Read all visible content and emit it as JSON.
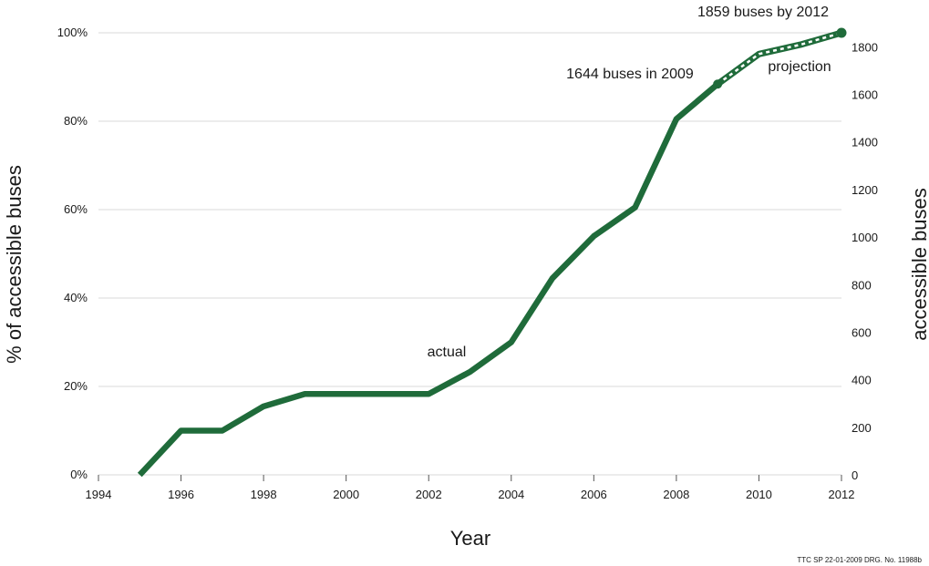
{
  "chart_data": {
    "type": "line",
    "xlabel": "Year",
    "ylabel_left": "% of accessible buses",
    "ylabel_right": "accessible buses",
    "x_ticks": [
      "1994",
      "1996",
      "1998",
      "2000",
      "2002",
      "2004",
      "2006",
      "2008",
      "2010",
      "2012"
    ],
    "y_left_ticks": [
      "0%",
      "20%",
      "40%",
      "60%",
      "80%",
      "100%"
    ],
    "y_right_ticks": [
      "0",
      "200",
      "400",
      "600",
      "800",
      "1000",
      "1200",
      "1400",
      "1600",
      "1800"
    ],
    "xlim": [
      1994,
      2012
    ],
    "ylim_left": [
      0,
      100
    ],
    "ylim_right": [
      0,
      1859
    ],
    "grid": true,
    "series": [
      {
        "name": "actual",
        "style": "solid",
        "color": "#1f6b3a",
        "x": [
          1995,
          1996,
          1997,
          1998,
          1999,
          2000,
          2001,
          2002,
          2003,
          2004,
          2005,
          2006,
          2007,
          2008,
          2009
        ],
        "y": [
          0,
          10,
          10,
          15.5,
          18.3,
          18.3,
          18.3,
          18.3,
          23.3,
          30,
          44.5,
          54,
          60.5,
          80.5,
          88.4
        ]
      },
      {
        "name": "projection",
        "style": "dashed",
        "color": "#1f6b3a",
        "x": [
          2009,
          2010,
          2011,
          2012
        ],
        "y": [
          88.4,
          95.2,
          97.3,
          100
        ]
      }
    ],
    "annotations": {
      "actual_label": "actual",
      "projection_label": "projection",
      "point_2009": "1644 buses in 2009",
      "point_2012": "1859 buses by 2012"
    }
  },
  "source_note": "TTC SP 22-01-2009 DRG. No. 11988b"
}
